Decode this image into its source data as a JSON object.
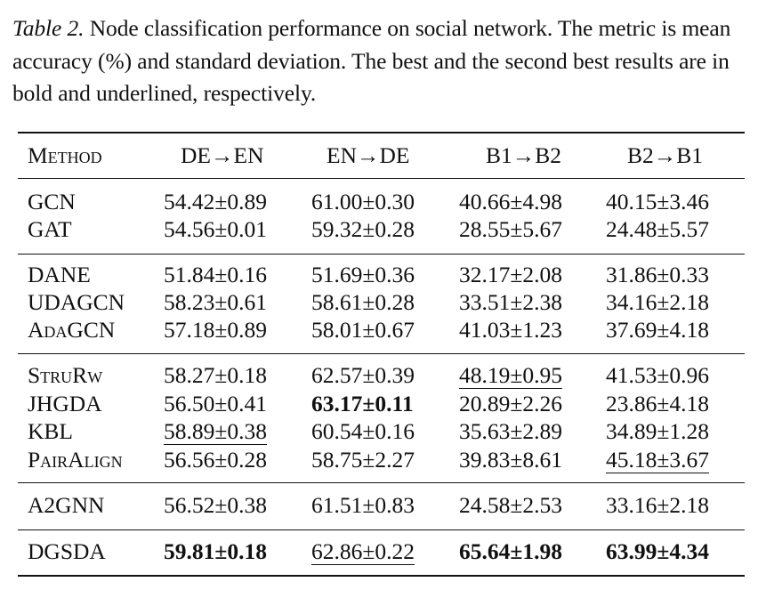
{
  "caption": {
    "label": "Table 2.",
    "text": " Node classification performance on social network. The metric is mean accuracy (%) and standard deviation. The best and the second best results are in bold and underlined, respectively."
  },
  "table": {
    "headers": [
      "Method",
      "DE→EN",
      "EN→DE",
      "B1→B2",
      "B2→B1"
    ],
    "rows": [
      {
        "method": "GCN",
        "values": [
          "54.42±0.89",
          "61.00±0.30",
          "40.66±4.98",
          "40.15±3.46"
        ]
      },
      {
        "method": "GAT",
        "values": [
          "54.56±0.01",
          "59.32±0.28",
          "28.55±5.67",
          "24.48±5.57"
        ]
      },
      {
        "method": "DANE",
        "values": [
          "51.84±0.16",
          "51.69±0.36",
          "32.17±2.08",
          "31.86±0.33"
        ]
      },
      {
        "method": "UDAGCN",
        "values": [
          "58.23±0.61",
          "58.61±0.28",
          "33.51±2.38",
          "34.16±2.18"
        ]
      },
      {
        "method": "AdaGCN",
        "values": [
          "57.18±0.89",
          "58.01±0.67",
          "41.03±1.23",
          "37.69±4.18"
        ]
      },
      {
        "method": "StruRw",
        "values": [
          "58.27±0.18",
          "62.57±0.39",
          "48.19±0.95",
          "41.53±0.96"
        ]
      },
      {
        "method": "JHGDA",
        "values": [
          "56.50±0.41",
          "63.17±0.11",
          "20.89±2.26",
          "23.86±4.18"
        ]
      },
      {
        "method": "KBL",
        "values": [
          "58.89±0.38",
          "60.54±0.16",
          "35.63±2.89",
          "34.89±1.28"
        ]
      },
      {
        "method": "PairAlign",
        "values": [
          "56.56±0.28",
          "58.75±2.27",
          "39.83±8.61",
          "45.18±3.67"
        ]
      },
      {
        "method": "A2GNN",
        "values": [
          "56.52±0.38",
          "61.51±0.83",
          "24.58±2.53",
          "33.16±2.18"
        ]
      },
      {
        "method": "DGSDA",
        "values": [
          "59.81±0.18",
          "62.86±0.22",
          "65.64±1.98",
          "63.99±4.34"
        ]
      }
    ]
  }
}
